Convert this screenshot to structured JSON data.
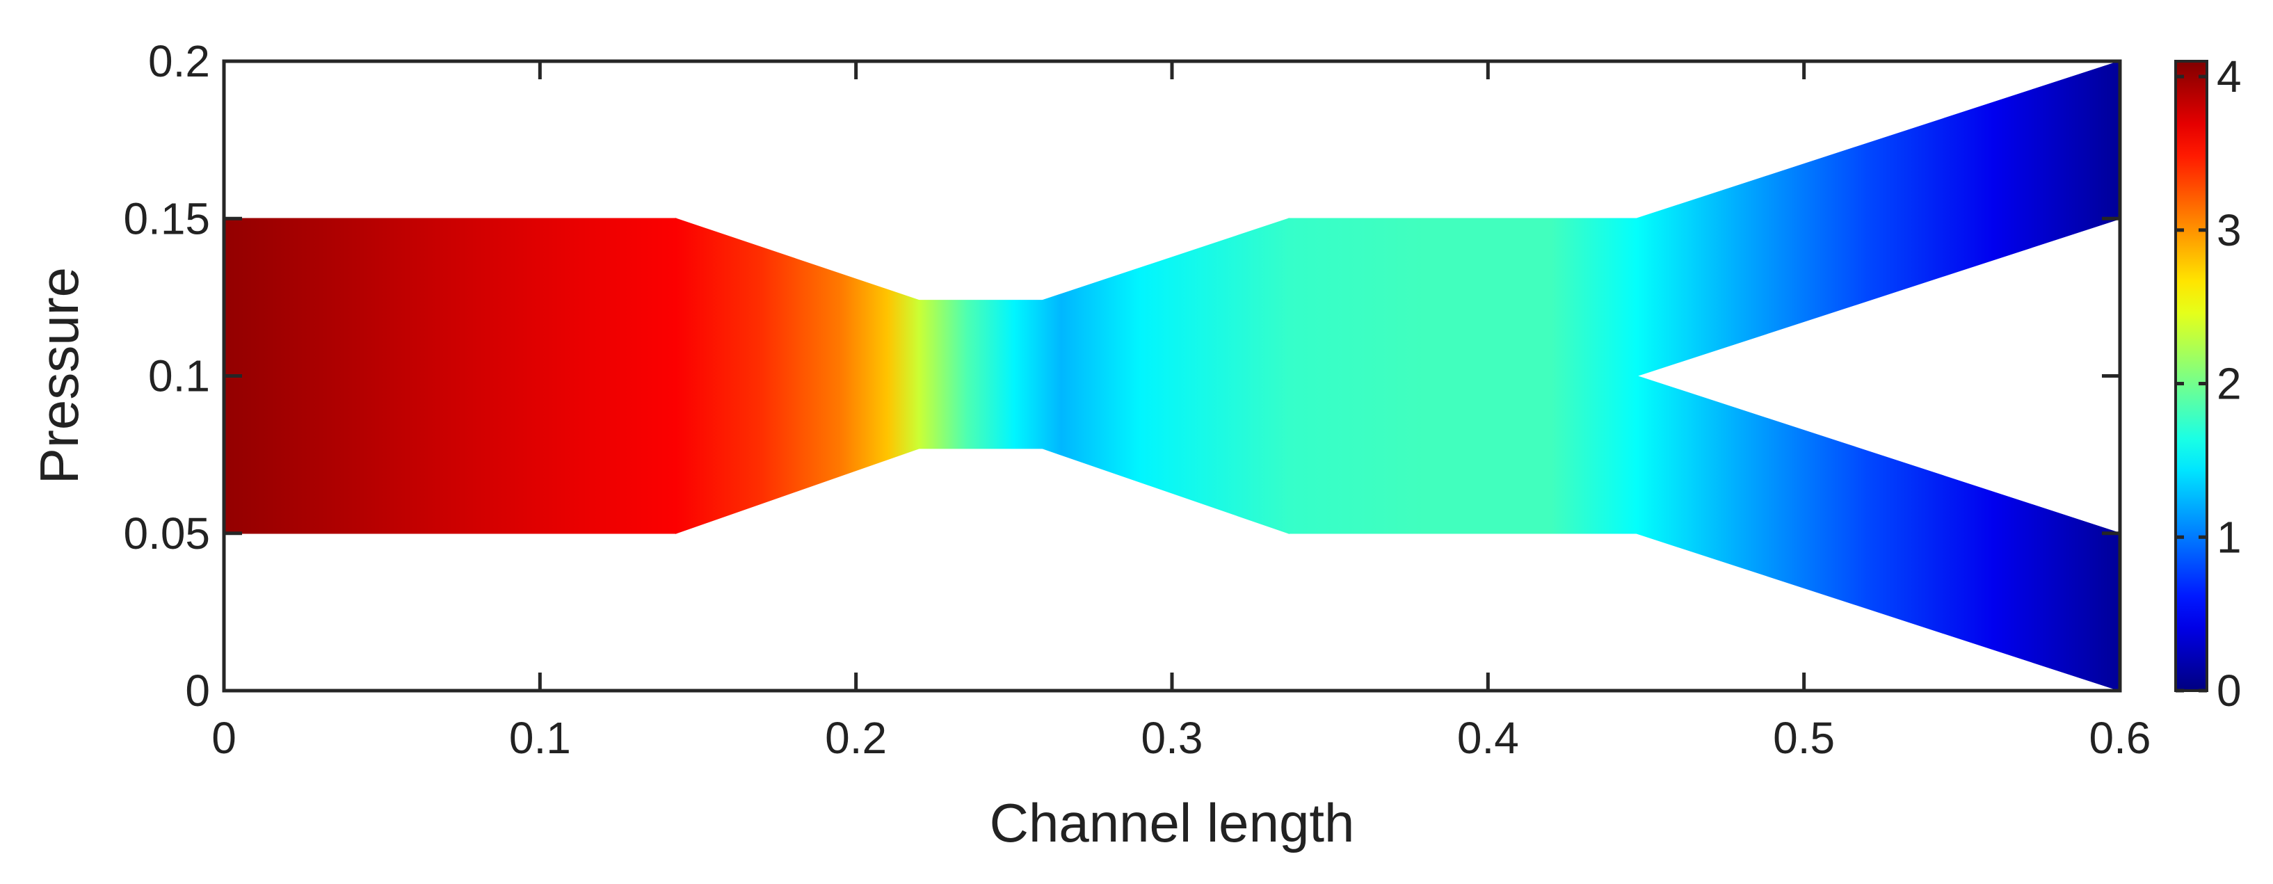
{
  "chart_data": {
    "type": "heatmap",
    "title": "",
    "xlabel": "Channel length",
    "ylabel": "Pressure",
    "xlim": [
      0,
      0.6
    ],
    "ylim": [
      0,
      0.2
    ],
    "xticks": [
      0,
      0.1,
      0.2,
      0.3,
      0.4,
      0.5,
      0.6
    ],
    "xtick_labels": [
      "0",
      "0.1",
      "0.2",
      "0.3",
      "0.4",
      "0.5",
      "0.6"
    ],
    "yticks": [
      0,
      0.05,
      0.1,
      0.15,
      0.2
    ],
    "ytick_labels": [
      "0",
      "0.05",
      "0.1",
      "0.15",
      "0.2"
    ],
    "colorbar": {
      "colormap": "jet",
      "range": [
        0,
        4.1
      ],
      "ticks": [
        0,
        1,
        2,
        3,
        4
      ],
      "tick_labels": [
        "0",
        "1",
        "2",
        "3",
        "4"
      ]
    },
    "geometry": {
      "inlet": {
        "x": [
          0,
          0.143
        ],
        "y": [
          0.05,
          0.15
        ]
      },
      "contraction": {
        "x": [
          0.143,
          0.22
        ],
        "y_top": [
          0.15,
          0.124
        ],
        "y_bottom": [
          0.05,
          0.077
        ]
      },
      "throat": {
        "x": [
          0.22,
          0.259
        ],
        "y": [
          0.077,
          0.124
        ]
      },
      "diffuser": {
        "x": [
          0.259,
          0.337
        ],
        "y_top": [
          0.124,
          0.15
        ],
        "y_bottom": [
          0.077,
          0.05
        ]
      },
      "chamber": {
        "x": [
          0.337,
          0.447
        ],
        "y": [
          0.05,
          0.15
        ]
      },
      "split_point": {
        "x": 0.447,
        "y": 0.1
      },
      "upper_branch": {
        "x": [
          0.447,
          0.6
        ],
        "y_top": [
          0.15,
          0.2
        ],
        "y_bottom": [
          0.1,
          0.15
        ]
      },
      "lower_branch": {
        "x": [
          0.447,
          0.6
        ],
        "y_top": [
          0.1,
          0.05
        ],
        "y_bottom": [
          0.05,
          0.0
        ]
      }
    },
    "field_profile": {
      "x": [
        0,
        0.04,
        0.07,
        0.11,
        0.143,
        0.17,
        0.195,
        0.21,
        0.22,
        0.235,
        0.25,
        0.265,
        0.29,
        0.337,
        0.38,
        0.42,
        0.447,
        0.48,
        0.52,
        0.56,
        0.6
      ],
      "value": [
        4.02,
        3.9,
        3.8,
        3.68,
        3.6,
        3.4,
        3.1,
        2.8,
        2.35,
        1.85,
        1.5,
        1.25,
        1.5,
        1.75,
        1.8,
        1.8,
        1.55,
        1.2,
        0.8,
        0.45,
        0.1
      ]
    }
  }
}
